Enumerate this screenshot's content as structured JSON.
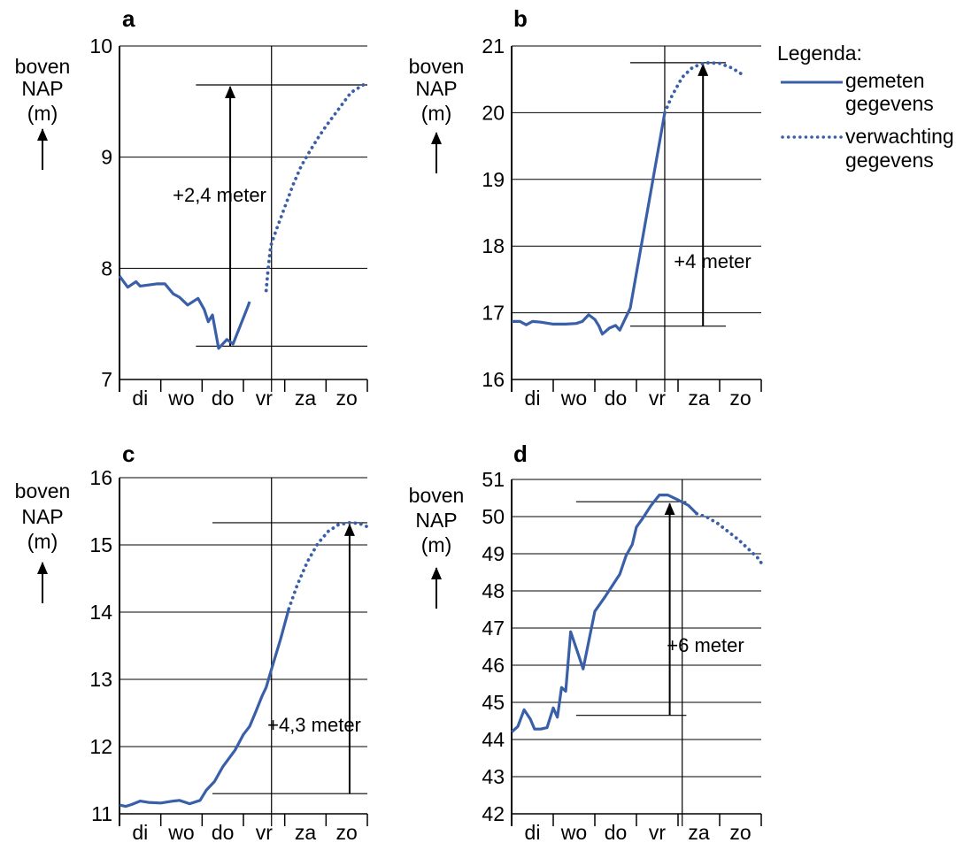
{
  "legend": {
    "title": "Legenda:",
    "measured_line1": "gemeten",
    "measured_line2": "gegevens",
    "forecast_line1": "verwachting",
    "forecast_line2": "gegevens"
  },
  "colors": {
    "series": "#3a5fa9",
    "grid": "#000000",
    "text": "#000000"
  },
  "chart_data": [
    {
      "type": "line",
      "panel": "a",
      "ylabel": [
        "boven",
        "NAP",
        "(m)"
      ],
      "ylim": [
        7,
        10
      ],
      "yticks": [
        7,
        8,
        9,
        10
      ],
      "xlim": [
        0,
        6
      ],
      "days": [
        "di",
        "wo",
        "do",
        "vr",
        "za",
        "zo"
      ],
      "now_x": 3.68,
      "measured": [
        [
          0,
          7.93
        ],
        [
          0.2,
          7.83
        ],
        [
          0.4,
          7.88
        ],
        [
          0.5,
          7.84
        ],
        [
          0.7,
          7.85
        ],
        [
          0.9,
          7.86
        ],
        [
          1.1,
          7.86
        ],
        [
          1.3,
          7.77
        ],
        [
          1.45,
          7.74
        ],
        [
          1.65,
          7.67
        ],
        [
          1.9,
          7.73
        ],
        [
          2.05,
          7.63
        ],
        [
          2.15,
          7.52
        ],
        [
          2.25,
          7.58
        ],
        [
          2.4,
          7.28
        ],
        [
          2.6,
          7.36
        ],
        [
          2.75,
          7.32
        ],
        [
          3.1,
          7.65
        ],
        [
          3.15,
          7.7
        ]
      ],
      "forecast": [
        [
          3.55,
          7.8
        ],
        [
          3.6,
          8.0
        ],
        [
          3.66,
          8.2
        ],
        [
          3.8,
          8.35
        ],
        [
          4.0,
          8.55
        ],
        [
          4.2,
          8.75
        ],
        [
          4.4,
          8.92
        ],
        [
          4.6,
          9.05
        ],
        [
          4.8,
          9.17
        ],
        [
          5.0,
          9.28
        ],
        [
          5.2,
          9.38
        ],
        [
          5.4,
          9.48
        ],
        [
          5.6,
          9.58
        ],
        [
          5.9,
          9.65
        ]
      ],
      "annotation": {
        "label": "+2,4 meter",
        "x": 2.68,
        "y_from": 7.3,
        "y_to": 9.65,
        "ref_from_x": 1.85,
        "ref_to_x": 6
      }
    },
    {
      "type": "line",
      "panel": "b",
      "ylabel": [
        "boven",
        "NAP",
        "(m)"
      ],
      "ylim": [
        16,
        21
      ],
      "yticks": [
        16,
        17,
        18,
        19,
        20,
        21
      ],
      "xlim": [
        0,
        6
      ],
      "days": [
        "di",
        "wo",
        "do",
        "vr",
        "za",
        "zo"
      ],
      "now_x": 3.68,
      "measured": [
        [
          0,
          16.87
        ],
        [
          0.2,
          16.87
        ],
        [
          0.35,
          16.82
        ],
        [
          0.5,
          16.87
        ],
        [
          0.7,
          16.86
        ],
        [
          1.0,
          16.83
        ],
        [
          1.3,
          16.83
        ],
        [
          1.55,
          16.84
        ],
        [
          1.7,
          16.87
        ],
        [
          1.85,
          16.97
        ],
        [
          2.0,
          16.9
        ],
        [
          2.1,
          16.8
        ],
        [
          2.18,
          16.68
        ],
        [
          2.35,
          16.77
        ],
        [
          2.5,
          16.81
        ],
        [
          2.6,
          16.74
        ],
        [
          2.85,
          17.07
        ],
        [
          3.68,
          20.0
        ]
      ],
      "forecast": [
        [
          3.68,
          20.0
        ],
        [
          3.85,
          20.25
        ],
        [
          4.1,
          20.53
        ],
        [
          4.35,
          20.68
        ],
        [
          4.65,
          20.75
        ],
        [
          5.0,
          20.74
        ],
        [
          5.3,
          20.67
        ],
        [
          5.55,
          20.57
        ]
      ],
      "annotation": {
        "label": "+4 meter",
        "x": 4.6,
        "y_from": 16.8,
        "y_to": 20.75,
        "ref_from_x": 2.85,
        "ref_to_x": 5.15
      }
    },
    {
      "type": "line",
      "panel": "c",
      "ylabel": [
        "boven",
        "NAP",
        "(m)"
      ],
      "ylim": [
        11,
        16
      ],
      "yticks": [
        11,
        12,
        13,
        14,
        15,
        16
      ],
      "xlim": [
        0,
        6
      ],
      "days": [
        "di",
        "wo",
        "do",
        "vr",
        "za",
        "zo"
      ],
      "now_x": 3.68,
      "measured": [
        [
          0,
          11.13
        ],
        [
          0.15,
          11.11
        ],
        [
          0.3,
          11.14
        ],
        [
          0.5,
          11.19
        ],
        [
          0.7,
          11.17
        ],
        [
          1.0,
          11.16
        ],
        [
          1.3,
          11.19
        ],
        [
          1.45,
          11.2
        ],
        [
          1.7,
          11.15
        ],
        [
          1.95,
          11.2
        ],
        [
          2.1,
          11.35
        ],
        [
          2.3,
          11.48
        ],
        [
          2.5,
          11.7
        ],
        [
          2.8,
          11.95
        ],
        [
          3.0,
          12.18
        ],
        [
          3.15,
          12.3
        ],
        [
          3.3,
          12.52
        ],
        [
          3.45,
          12.75
        ],
        [
          3.55,
          12.88
        ],
        [
          3.68,
          13.15
        ],
        [
          3.9,
          13.6
        ],
        [
          4.1,
          14.05
        ]
      ],
      "forecast": [
        [
          4.1,
          14.05
        ],
        [
          4.3,
          14.4
        ],
        [
          4.55,
          14.75
        ],
        [
          4.8,
          15.02
        ],
        [
          5.05,
          15.2
        ],
        [
          5.3,
          15.3
        ],
        [
          5.55,
          15.33
        ],
        [
          5.8,
          15.32
        ],
        [
          6.0,
          15.27
        ]
      ],
      "annotation": {
        "label": "+4,3 meter",
        "x": 5.57,
        "y_from": 11.3,
        "y_to": 15.33,
        "ref_from_x": 2.25,
        "ref_to_x": 6
      }
    },
    {
      "type": "line",
      "panel": "d",
      "ylabel": [
        "boven",
        "NAP",
        "(m)"
      ],
      "ylim": [
        42,
        51
      ],
      "yticks": [
        42,
        43,
        44,
        45,
        46,
        47,
        48,
        49,
        50,
        51
      ],
      "xlim": [
        0,
        6
      ],
      "days": [
        "di",
        "wo",
        "do",
        "vr",
        "za",
        "zo"
      ],
      "now_x": 4.1,
      "measured": [
        [
          0,
          44.2
        ],
        [
          0.15,
          44.35
        ],
        [
          0.3,
          44.8
        ],
        [
          0.45,
          44.55
        ],
        [
          0.55,
          44.28
        ],
        [
          0.7,
          44.28
        ],
        [
          0.85,
          44.32
        ],
        [
          1.0,
          44.85
        ],
        [
          1.1,
          44.6
        ],
        [
          1.2,
          45.4
        ],
        [
          1.3,
          45.3
        ],
        [
          1.42,
          46.9
        ],
        [
          1.6,
          46.3
        ],
        [
          1.72,
          45.9
        ],
        [
          2.0,
          47.45
        ],
        [
          2.25,
          47.85
        ],
        [
          2.6,
          48.45
        ],
        [
          2.75,
          48.95
        ],
        [
          2.9,
          49.25
        ],
        [
          3.0,
          49.72
        ],
        [
          3.15,
          49.95
        ],
        [
          3.35,
          50.3
        ],
        [
          3.55,
          50.58
        ],
        [
          3.75,
          50.58
        ],
        [
          4.0,
          50.45
        ],
        [
          4.25,
          50.3
        ],
        [
          4.45,
          50.08
        ]
      ],
      "forecast": [
        [
          4.45,
          50.08
        ],
        [
          4.7,
          49.98
        ],
        [
          4.95,
          49.82
        ],
        [
          5.2,
          49.6
        ],
        [
          5.45,
          49.38
        ],
        [
          5.7,
          49.12
        ],
        [
          5.95,
          48.85
        ],
        [
          6.0,
          48.75
        ]
      ],
      "annotation": {
        "label": "+6 meter",
        "x": 3.8,
        "y_from": 44.65,
        "y_to": 50.4,
        "ref_from_x": 1.55,
        "ref_to_x": 4.2
      }
    }
  ],
  "panel_letters": [
    "a",
    "b",
    "c",
    "d"
  ]
}
